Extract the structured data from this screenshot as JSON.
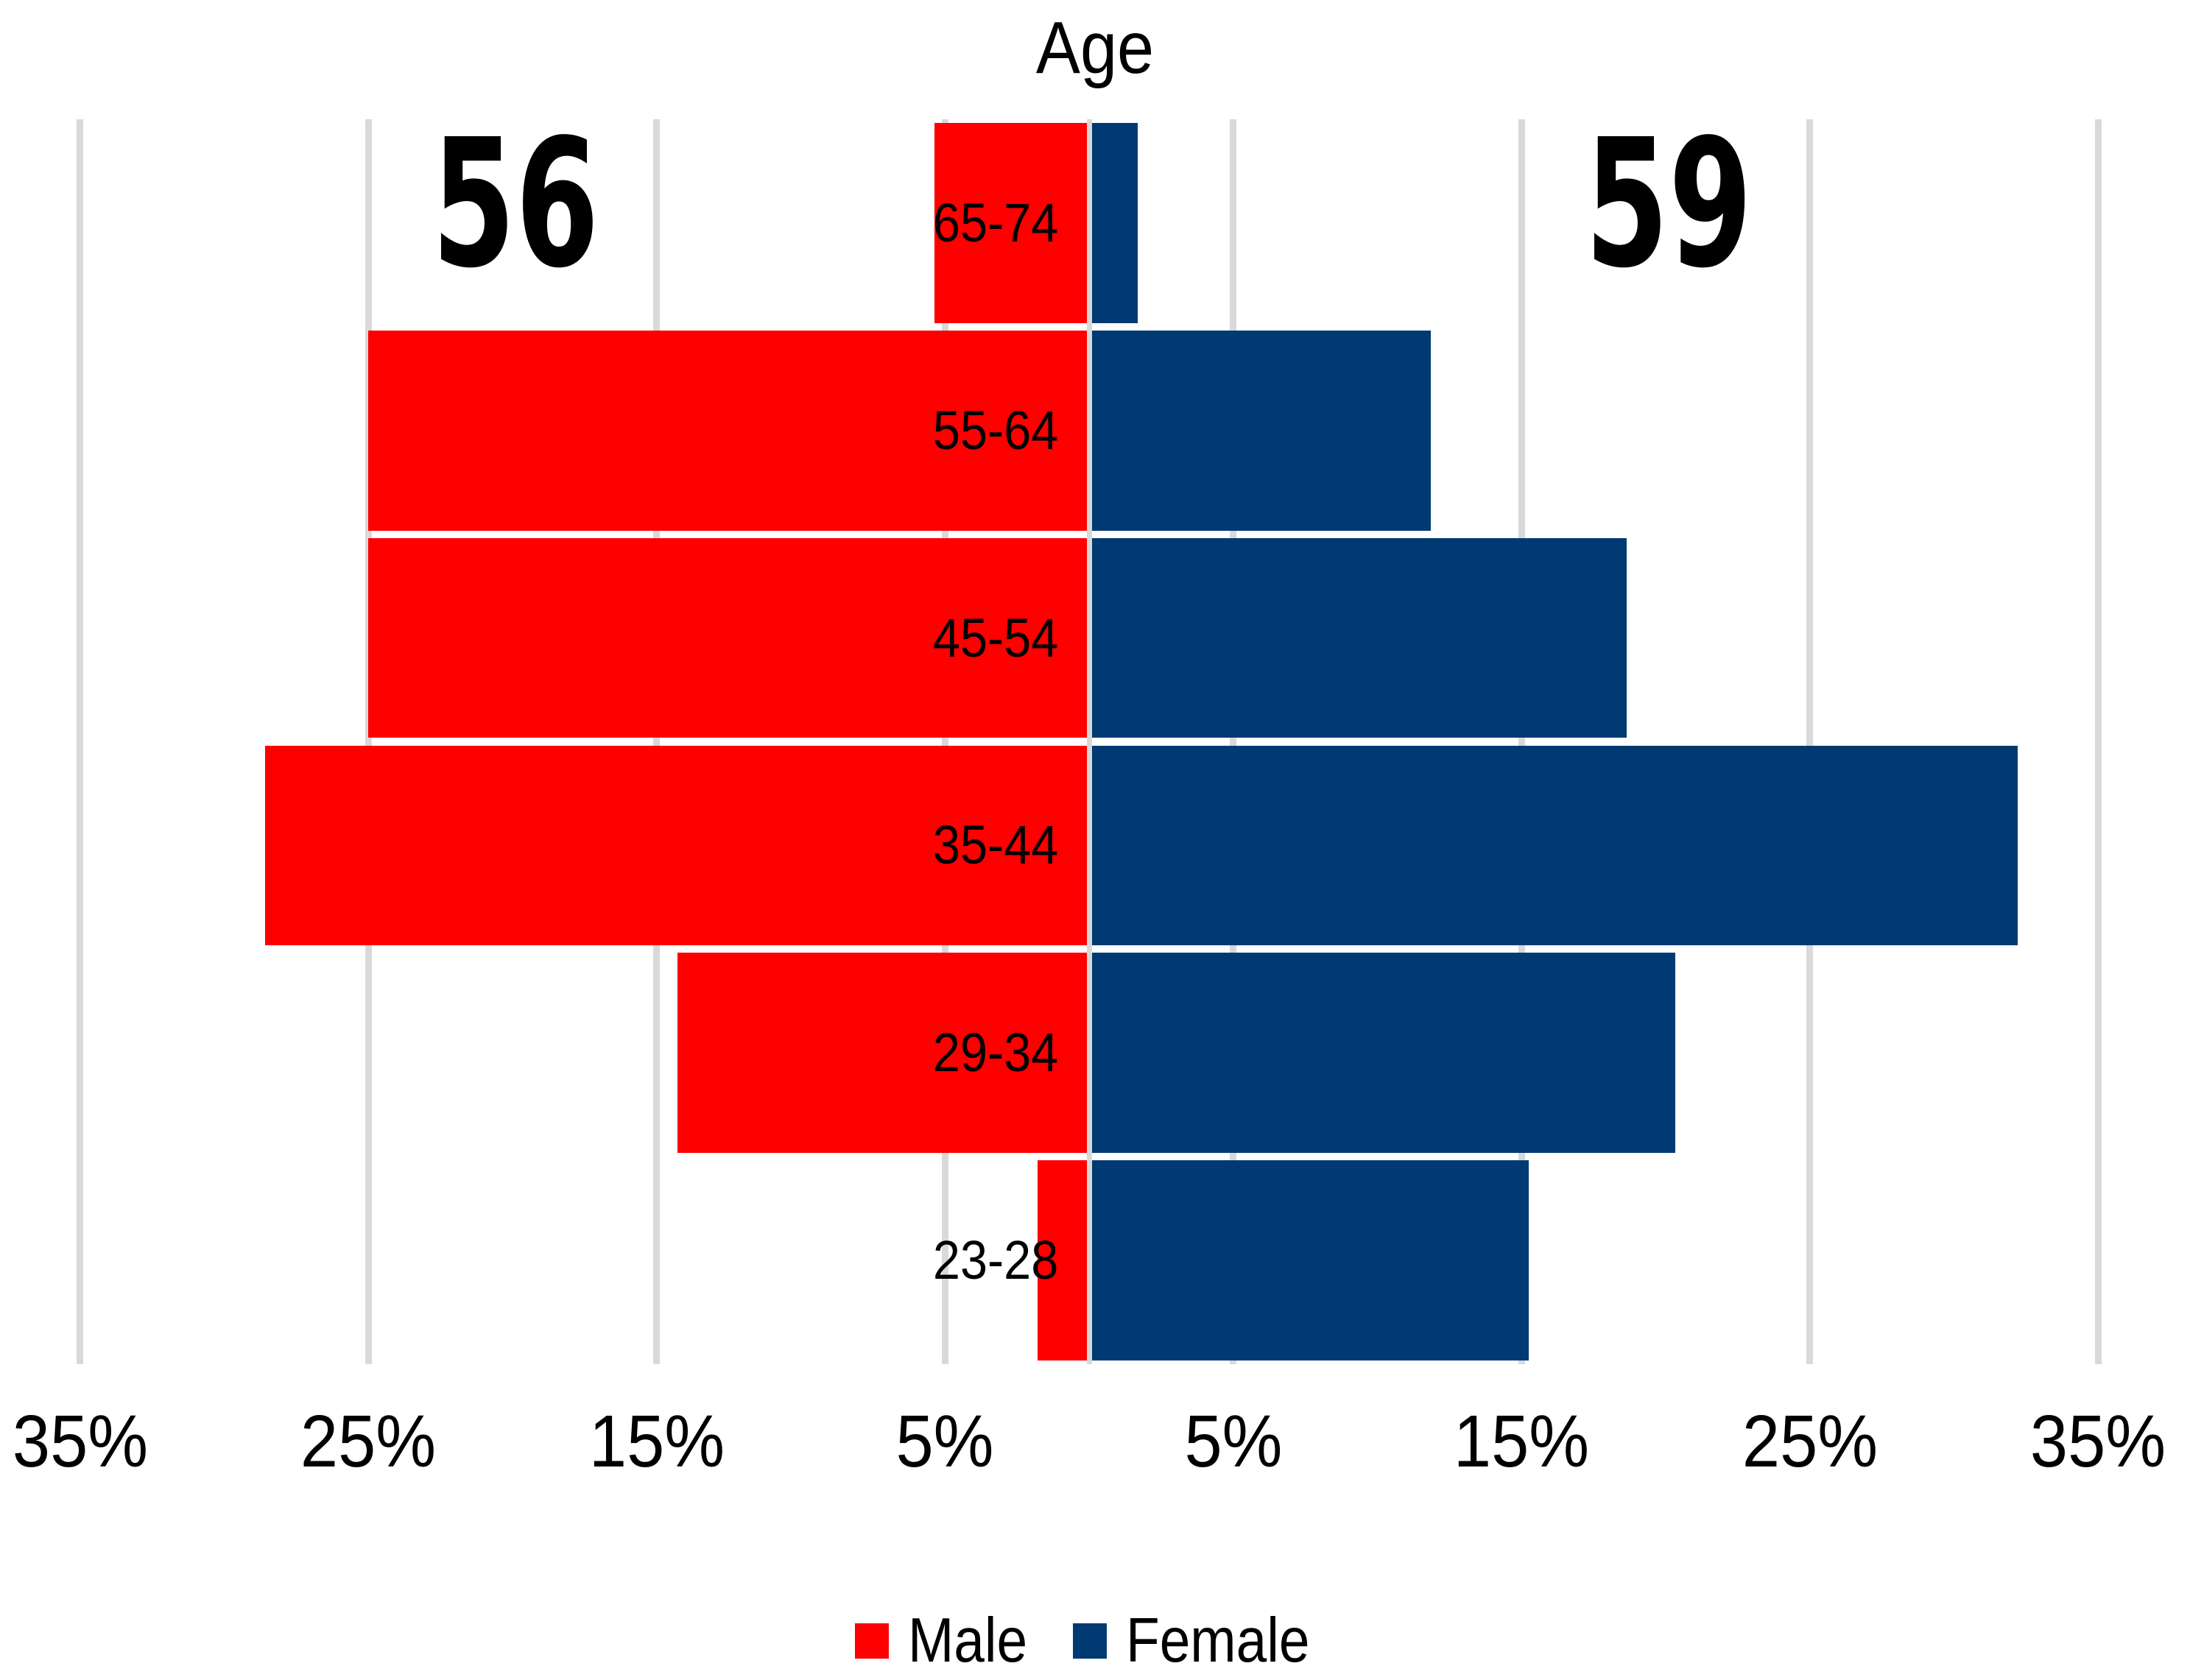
{
  "title": "Age",
  "annotations": {
    "male_total": "56",
    "female_total": "59"
  },
  "legend": {
    "items": [
      {
        "label": "Male",
        "color": "#FE0000"
      },
      {
        "label": "Female",
        "color": "#003A73"
      }
    ]
  },
  "colors": {
    "male": "#FE0000",
    "female": "#003A73",
    "gridline": "#D9D9D9",
    "text": "#000000",
    "background": "#FFFFFF"
  },
  "chart_data": {
    "type": "bar",
    "subtype": "population_pyramid",
    "title": "Age",
    "categories": [
      "65-74",
      "55-64",
      "45-54",
      "35-44",
      "29-34",
      "23-28"
    ],
    "series": [
      {
        "name": "Male",
        "side": "left",
        "color": "#FE0000",
        "total_label": "56",
        "values_pct": [
          5.36,
          25.0,
          25.0,
          28.57,
          14.29,
          1.79
        ]
      },
      {
        "name": "Female",
        "side": "right",
        "color": "#003A73",
        "total_label": "59",
        "values_pct": [
          1.69,
          11.86,
          18.64,
          32.2,
          20.34,
          15.25
        ]
      }
    ],
    "x_ticks": [
      {
        "value": -35,
        "label": "35%"
      },
      {
        "value": -25,
        "label": "25%"
      },
      {
        "value": -15,
        "label": "15%"
      },
      {
        "value": -5,
        "label": "5%"
      },
      {
        "value": 5,
        "label": "5%"
      },
      {
        "value": 15,
        "label": "15%"
      },
      {
        "value": 25,
        "label": "25%"
      },
      {
        "value": 35,
        "label": "35%"
      }
    ],
    "xlim": [
      -37.5,
      37.5
    ],
    "grid": true,
    "legend_position": "bottom",
    "unit": "%"
  }
}
